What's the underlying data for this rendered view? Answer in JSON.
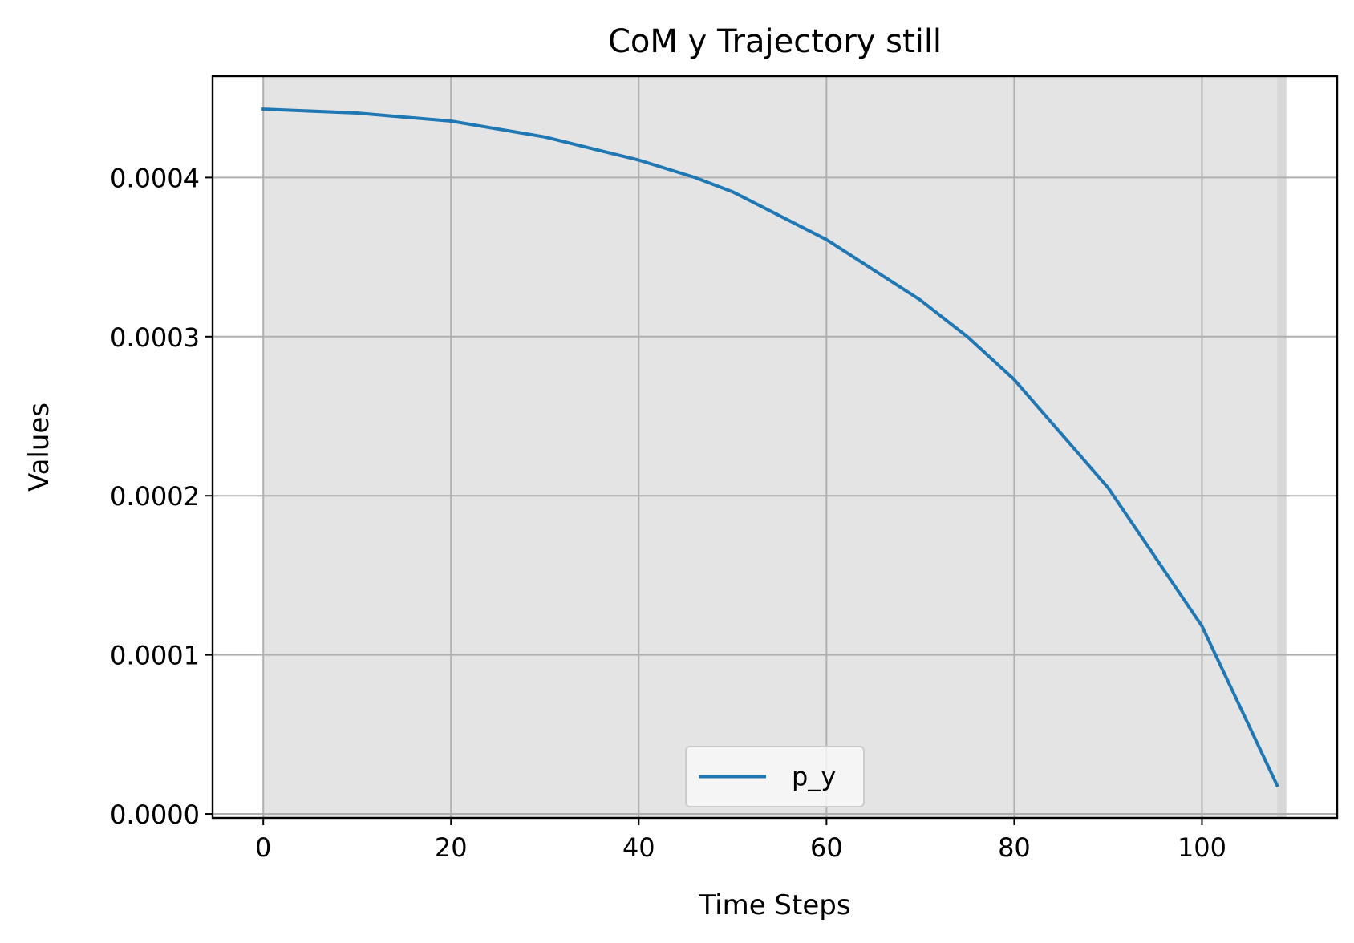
{
  "chart_data": {
    "type": "line",
    "title": "CoM y Trajectory still",
    "xlabel": "Time Steps",
    "ylabel": "Values",
    "xlim": [
      -5.4,
      114.4
    ],
    "ylim": [
      -2.5e-06,
      0.0004637
    ],
    "xticks": [
      0,
      20,
      40,
      60,
      80,
      100
    ],
    "xtick_labels": [
      "0",
      "20",
      "40",
      "60",
      "80",
      "100"
    ],
    "yticks": [
      0,
      0.0001,
      0.0002,
      0.0003,
      0.0004
    ],
    "ytick_labels": [
      "0.0000",
      "0.0001",
      "0.0002",
      "0.0003",
      "0.0004"
    ],
    "grid": true,
    "legend_position": "lower center",
    "shaded_regions": [
      {
        "x_start": 0,
        "x_end": 108,
        "color": "#e4e4e4"
      },
      {
        "x_start": 108,
        "x_end": 109,
        "color": "#d8d8d8"
      }
    ],
    "series": [
      {
        "name": "p_y",
        "color": "#1f77b4",
        "x": [
          0,
          10,
          20,
          30,
          40,
          46,
          50,
          60,
          70,
          75,
          80,
          90,
          100,
          108
        ],
        "y": [
          0.000443,
          0.0004405,
          0.0004355,
          0.0004255,
          0.000411,
          0.0004,
          0.000391,
          0.000361,
          0.000323,
          0.0003,
          0.000273,
          0.000205,
          0.000118,
          1.8e-05
        ]
      }
    ]
  }
}
